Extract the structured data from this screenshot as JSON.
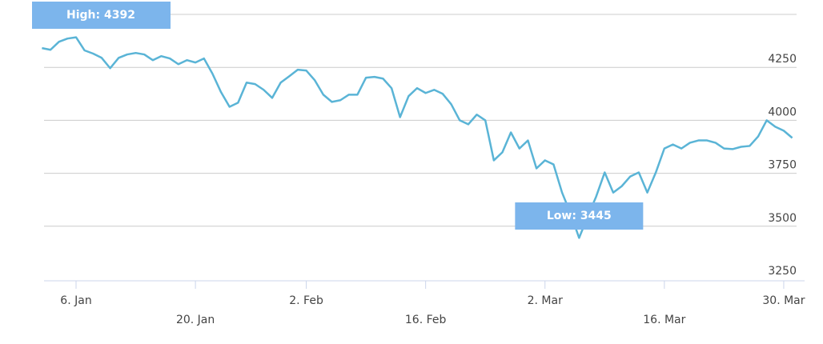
{
  "chart_data": {
    "type": "line",
    "x": [
      "2. Jan",
      "3. Jan",
      "4. Jan",
      "5. Jan",
      "6. Jan",
      "7. Jan",
      "8. Jan",
      "9. Jan",
      "10. Jan",
      "11. Jan",
      "12. Jan",
      "13. Jan",
      "14. Jan",
      "15. Jan",
      "16. Jan",
      "17. Jan",
      "18. Jan",
      "19. Jan",
      "20. Jan",
      "21. Jan",
      "22. Jan",
      "23. Jan",
      "24. Jan",
      "25. Jan",
      "26. Jan",
      "27. Jan",
      "28. Jan",
      "29. Jan",
      "30. Jan",
      "31. Jan",
      "1. Feb",
      "2. Feb",
      "3. Feb",
      "4. Feb",
      "5. Feb",
      "6. Feb",
      "7. Feb",
      "8. Feb",
      "9. Feb",
      "10. Feb",
      "11. Feb",
      "12. Feb",
      "13. Feb",
      "14. Feb",
      "15. Feb",
      "16. Feb",
      "17. Feb",
      "18. Feb",
      "19. Feb",
      "20. Feb",
      "21. Feb",
      "22. Feb",
      "23. Feb",
      "24. Feb",
      "25. Feb",
      "26. Feb",
      "27. Feb",
      "28. Feb",
      "1. Mar",
      "2. Mar",
      "3. Mar",
      "4. Mar",
      "5. Mar",
      "6. Mar",
      "7. Mar",
      "8. Mar",
      "9. Mar",
      "10. Mar",
      "11. Mar",
      "12. Mar",
      "13. Mar",
      "14. Mar",
      "15. Mar",
      "16. Mar",
      "17. Mar",
      "18. Mar",
      "19. Mar",
      "20. Mar",
      "21. Mar",
      "22. Mar",
      "23. Mar",
      "24. Mar",
      "25. Mar",
      "26. Mar",
      "27. Mar",
      "28. Mar",
      "29. Mar",
      "30. Mar",
      "31. Mar"
    ],
    "series": [
      {
        "color": "#5ab4d6",
        "values": [
          4341,
          4333,
          4371,
          4386,
          4392,
          4330,
          4315,
          4295,
          4246,
          4295,
          4311,
          4318,
          4311,
          4284,
          4303,
          4292,
          4265,
          4284,
          4273,
          4292,
          4220,
          4133,
          4064,
          4083,
          4178,
          4171,
          4144,
          4106,
          4178,
          4208,
          4239,
          4235,
          4189,
          4121,
          4087,
          4095,
          4121,
          4121,
          4201,
          4205,
          4197,
          4152,
          4015,
          4114,
          4152,
          4129,
          4144,
          4125,
          4076,
          4000,
          3981,
          4027,
          4000,
          3811,
          3849,
          3943,
          3867,
          3905,
          3773,
          3811,
          3792,
          3659,
          3560,
          3445,
          3545,
          3640,
          3754,
          3659,
          3689,
          3735,
          3754,
          3659,
          3754,
          3867,
          3886,
          3867,
          3894,
          3905,
          3905,
          3894,
          3867,
          3864,
          3875,
          3879,
          3924,
          4000,
          3970,
          3951,
          3917
        ]
      }
    ],
    "xticks": [
      "6. Jan",
      "20. Jan",
      "2. Feb",
      "16. Feb",
      "2. Mar",
      "16. Mar",
      "30. Mar"
    ],
    "ylim": [
      3250,
      4500
    ],
    "yticks": [
      3250,
      3500,
      3750,
      4000,
      4250
    ],
    "grid": true,
    "annotations": [
      {
        "text": "High: 4392",
        "point": 4
      },
      {
        "text": "Low: 3445",
        "point": 63
      }
    ]
  }
}
